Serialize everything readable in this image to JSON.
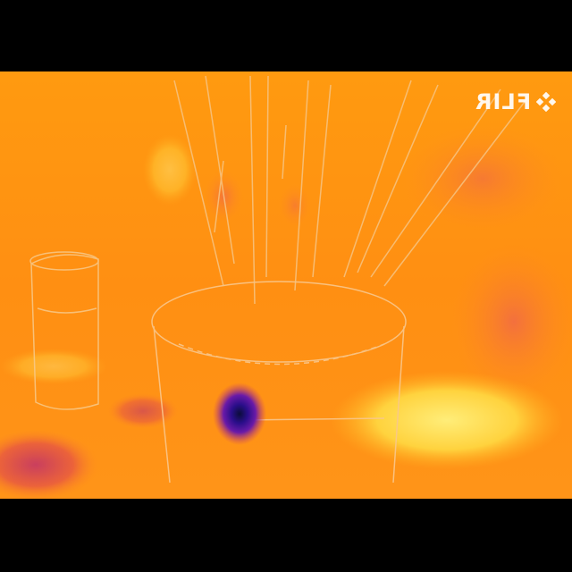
{
  "image": {
    "kind": "thermal-camera-image",
    "palette": "iron",
    "mirrored": true
  },
  "overlay": {
    "brand": "FLIR",
    "brand_icon": "flir-logo-icon"
  },
  "colors": {
    "background": "#000000",
    "warm": "#ff9a14",
    "hot": "#fff07a",
    "cool": "#d0356a",
    "coldest": "#1a0a70"
  }
}
